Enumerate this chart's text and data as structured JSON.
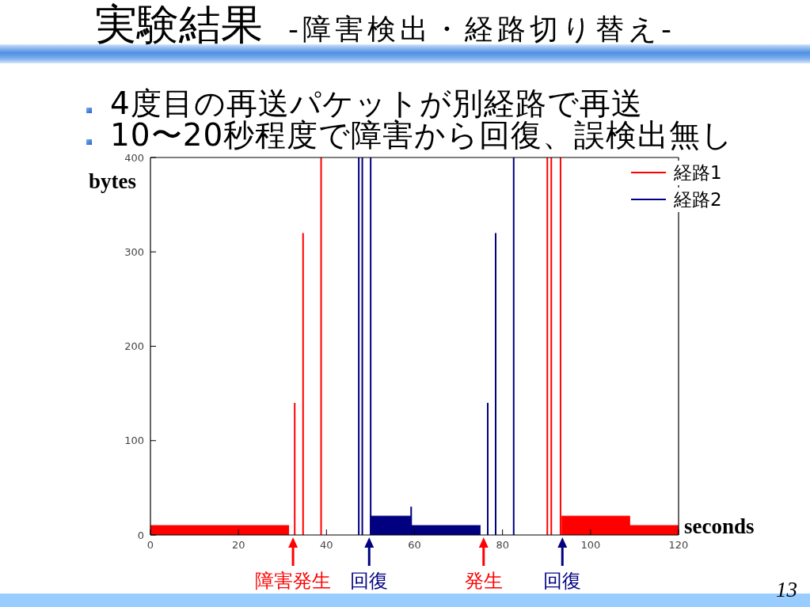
{
  "chart_data": {
    "type": "area",
    "title": "実験結果",
    "subtitle": "-障害検出・経路切り替え-",
    "xlabel": "seconds",
    "ylabel": "bytes",
    "xlim": [
      0,
      120
    ],
    "xticks": [
      0,
      20,
      40,
      60,
      80,
      100,
      120
    ],
    "ylim": [
      0,
      400
    ],
    "yticks": [
      0,
      100,
      200,
      300,
      400
    ],
    "legend": "top right",
    "series": [
      {
        "name": "経路1",
        "color": "#ff0000",
        "x": [
          0,
          31.5
        ],
        "values": [
          10,
          10
        ]
      },
      {
        "color": "#ff0000",
        "x": [
          93.4,
          108.9,
          108.9,
          120
        ],
        "values": [
          20,
          20,
          10,
          10
        ]
      },
      {
        "color": "#ff0000",
        "type": "bar",
        "x": [
          33,
          34.9,
          39,
          90.4,
          91.3,
          93.4
        ],
        "values": [
          140,
          320,
          400,
          400,
          400,
          400
        ]
      },
      {
        "name": "経路2",
        "color": "#000080",
        "x": [
          49.9,
          59.1,
          59.1,
          75
        ],
        "values": [
          20,
          20,
          10,
          10
        ]
      },
      {
        "color": "#000080",
        "type": "bar",
        "x": [
          47.2,
          48,
          49.9,
          59.1,
          76.5,
          78.3,
          82.4
        ],
        "values": [
          400,
          400,
          400,
          30,
          140,
          320,
          400
        ]
      }
    ],
    "annotations": [
      "4度目の再送パケットが別経路で再送",
      "10〜20秒程度で障害から回復、誤検出無し",
      {
        "text": "障害発生",
        "x": 32.4,
        "y": 0
      },
      {
        "text": "回復",
        "x": 49.7,
        "y": 0
      },
      {
        "text": "発生",
        "x": 75.7,
        "y": 0
      },
      {
        "text": "回復",
        "x": 93.6,
        "y": 0
      },
      "13"
    ]
  }
}
